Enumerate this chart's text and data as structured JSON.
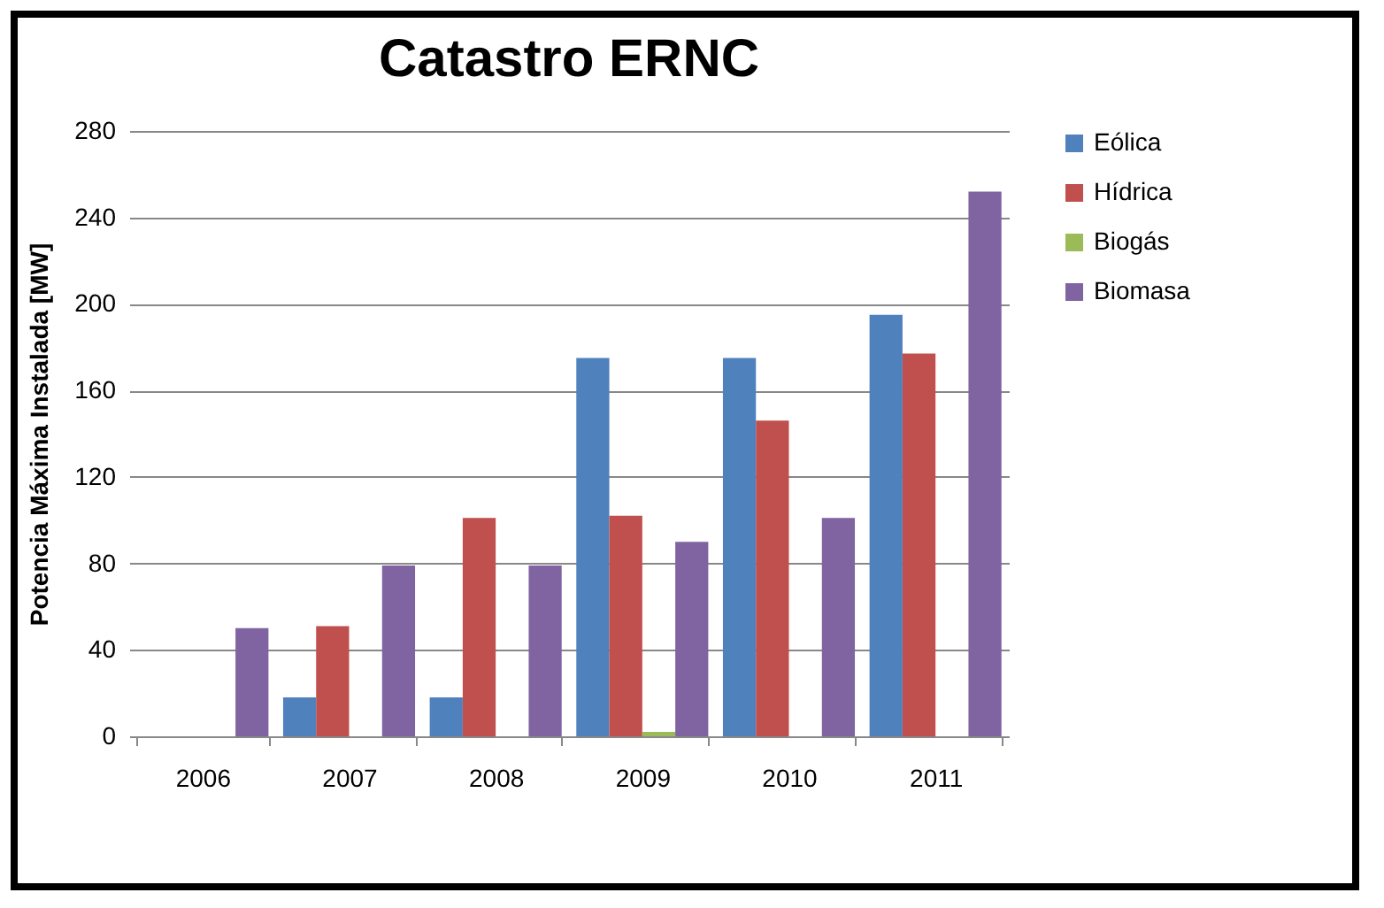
{
  "chart_data": {
    "type": "bar",
    "title": "Catastro ERNC",
    "ylabel": "Potencia Máxima Instalada [MW]",
    "categories": [
      "2006",
      "2007",
      "2008",
      "2009",
      "2010",
      "2011"
    ],
    "series": [
      {
        "name": "Eólica",
        "color": "#4f81bd",
        "values": [
          null,
          18,
          18,
          175,
          175,
          195
        ]
      },
      {
        "name": "Hídrica",
        "color": "#c0504d",
        "values": [
          null,
          51,
          101,
          102,
          146,
          177
        ]
      },
      {
        "name": "Biogás",
        "color": "#9bbb59",
        "values": [
          null,
          null,
          null,
          2,
          null,
          null
        ]
      },
      {
        "name": "Biomasa",
        "color": "#8064a2",
        "values": [
          50,
          79,
          79,
          90,
          101,
          252
        ]
      }
    ],
    "ylim": [
      0,
      280
    ],
    "yticks": [
      0,
      40,
      80,
      120,
      160,
      200,
      240,
      280
    ],
    "grid": "y",
    "legend": "right"
  }
}
